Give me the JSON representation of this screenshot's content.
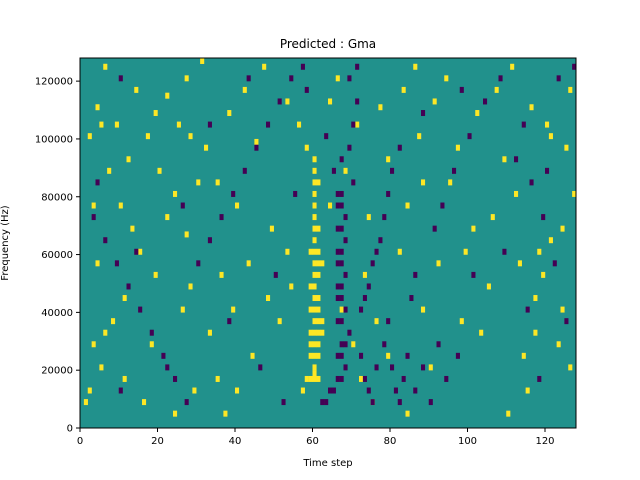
{
  "chart_data": {
    "type": "heatmap",
    "title": "Predicted : Gma",
    "xlabel": "Time step",
    "ylabel": "Frequency (Hz)",
    "xlim": [
      0,
      128
    ],
    "ylim": [
      0,
      128000
    ],
    "x_ticks": [
      0,
      20,
      40,
      60,
      80,
      100,
      120
    ],
    "y_ticks": [
      0,
      20000,
      40000,
      60000,
      80000,
      100000,
      120000
    ],
    "x_tick_labels": [
      "0",
      "20",
      "40",
      "60",
      "80",
      "100",
      "120"
    ],
    "y_tick_labels": [
      "0",
      "20000",
      "40000",
      "60000",
      "80000",
      "100000",
      "120000"
    ],
    "rows": 64,
    "row_height_hz": 2000,
    "value_levels": {
      "low": -1,
      "mid": 0,
      "high": 1
    },
    "colormap": {
      "low": "#440154",
      "mid": "#21918c",
      "high": "#fde725"
    },
    "colorbar": false,
    "grid": false,
    "high_cells": [
      [
        58,
        8
      ],
      [
        59,
        8
      ],
      [
        60,
        8
      ],
      [
        61,
        8
      ],
      [
        60,
        9
      ],
      [
        60,
        10
      ],
      [
        59,
        12
      ],
      [
        60,
        12
      ],
      [
        61,
        12
      ],
      [
        59,
        14
      ],
      [
        60,
        14
      ],
      [
        61,
        14
      ],
      [
        59,
        16
      ],
      [
        60,
        16
      ],
      [
        61,
        16
      ],
      [
        62,
        16
      ],
      [
        60,
        18
      ],
      [
        61,
        18
      ],
      [
        62,
        18
      ],
      [
        59,
        20
      ],
      [
        60,
        20
      ],
      [
        61,
        20
      ],
      [
        60,
        22
      ],
      [
        61,
        22
      ],
      [
        59,
        24
      ],
      [
        60,
        24
      ],
      [
        60,
        26
      ],
      [
        61,
        26
      ],
      [
        60,
        28
      ],
      [
        61,
        28
      ],
      [
        62,
        28
      ],
      [
        59,
        30
      ],
      [
        60,
        30
      ],
      [
        61,
        30
      ],
      [
        60,
        32
      ],
      [
        60,
        34
      ],
      [
        61,
        34
      ],
      [
        60,
        36
      ],
      [
        60,
        38
      ],
      [
        60,
        40
      ],
      [
        60,
        42
      ],
      [
        61,
        42
      ],
      [
        60,
        44
      ],
      [
        60,
        46
      ],
      [
        58,
        48
      ],
      [
        2,
        50
      ],
      [
        5,
        52
      ],
      [
        28,
        50
      ],
      [
        32,
        48
      ],
      [
        45,
        49
      ],
      [
        20,
        44
      ],
      [
        24,
        40
      ],
      [
        30,
        42
      ],
      [
        10,
        38
      ],
      [
        13,
        34
      ],
      [
        22,
        36
      ],
      [
        27,
        33
      ],
      [
        15,
        30
      ],
      [
        4,
        28
      ],
      [
        36,
        26
      ],
      [
        48,
        22
      ],
      [
        39,
        20
      ],
      [
        26,
        20
      ],
      [
        8,
        18
      ],
      [
        33,
        16
      ],
      [
        51,
        18
      ],
      [
        3,
        14
      ],
      [
        18,
        14
      ],
      [
        44,
        12
      ],
      [
        5,
        10
      ],
      [
        11,
        8
      ],
      [
        29,
        6
      ],
      [
        35,
        8
      ],
      [
        40,
        6
      ],
      [
        57,
        6
      ],
      [
        2,
        6
      ],
      [
        16,
        4
      ],
      [
        24,
        2
      ],
      [
        37,
        2
      ],
      [
        70,
        14
      ],
      [
        67,
        20
      ],
      [
        76,
        18
      ],
      [
        79,
        12
      ],
      [
        73,
        26
      ],
      [
        88,
        20
      ],
      [
        82,
        30
      ],
      [
        84,
        38
      ],
      [
        95,
        42
      ],
      [
        101,
        34
      ],
      [
        99,
        30
      ],
      [
        105,
        24
      ],
      [
        113,
        28
      ],
      [
        117,
        22
      ],
      [
        119,
        26
      ],
      [
        121,
        32
      ],
      [
        124,
        34
      ],
      [
        126,
        10
      ],
      [
        123,
        14
      ],
      [
        118,
        30
      ],
      [
        125,
        48
      ],
      [
        121,
        50
      ],
      [
        112,
        40
      ],
      [
        109,
        46
      ],
      [
        97,
        48
      ],
      [
        88,
        42
      ],
      [
        72,
        8
      ],
      [
        75,
        4
      ],
      [
        84,
        2
      ],
      [
        90,
        10
      ],
      [
        98,
        18
      ],
      [
        103,
        16
      ],
      [
        115,
        6
      ],
      [
        110,
        2
      ],
      [
        124,
        20
      ],
      [
        127,
        40
      ],
      [
        7,
        44
      ],
      [
        12,
        46
      ],
      [
        19,
        54
      ],
      [
        22,
        57
      ],
      [
        27,
        60
      ],
      [
        31,
        63
      ],
      [
        14,
        58
      ],
      [
        6,
        62
      ],
      [
        4,
        55
      ],
      [
        9,
        52
      ],
      [
        17,
        50
      ],
      [
        25,
        52
      ],
      [
        38,
        54
      ],
      [
        42,
        58
      ],
      [
        47,
        62
      ],
      [
        53,
        56
      ],
      [
        56,
        52
      ],
      [
        64,
        56
      ],
      [
        66,
        60
      ],
      [
        71,
        52
      ],
      [
        77,
        55
      ],
      [
        83,
        58
      ],
      [
        86,
        62
      ],
      [
        91,
        56
      ],
      [
        94,
        60
      ],
      [
        102,
        54
      ],
      [
        107,
        58
      ],
      [
        111,
        62
      ],
      [
        116,
        55
      ],
      [
        120,
        52
      ],
      [
        126,
        58
      ],
      [
        35,
        42
      ],
      [
        40,
        38
      ],
      [
        53,
        30
      ],
      [
        64,
        38
      ],
      [
        68,
        44
      ],
      [
        74,
        36
      ],
      [
        79,
        46
      ],
      [
        87,
        50
      ],
      [
        92,
        28
      ],
      [
        106,
        36
      ],
      [
        114,
        12
      ],
      [
        117,
        16
      ],
      [
        43,
        28
      ],
      [
        49,
        34
      ],
      [
        54,
        24
      ],
      [
        28,
        24
      ],
      [
        19,
        26
      ],
      [
        11,
        22
      ],
      [
        6,
        16
      ],
      [
        1,
        4
      ],
      [
        3,
        38
      ]
    ],
    "low_cells": [
      [
        62,
        4
      ],
      [
        63,
        4
      ],
      [
        64,
        6
      ],
      [
        65,
        6
      ],
      [
        66,
        8
      ],
      [
        67,
        8
      ],
      [
        68,
        10
      ],
      [
        66,
        12
      ],
      [
        67,
        12
      ],
      [
        67,
        14
      ],
      [
        68,
        14
      ],
      [
        69,
        16
      ],
      [
        66,
        18
      ],
      [
        67,
        18
      ],
      [
        68,
        20
      ],
      [
        66,
        22
      ],
      [
        67,
        22
      ],
      [
        66,
        24
      ],
      [
        67,
        24
      ],
      [
        68,
        26
      ],
      [
        66,
        28
      ],
      [
        67,
        28
      ],
      [
        66,
        30
      ],
      [
        67,
        30
      ],
      [
        68,
        32
      ],
      [
        66,
        34
      ],
      [
        67,
        34
      ],
      [
        68,
        36
      ],
      [
        66,
        38
      ],
      [
        67,
        38
      ],
      [
        66,
        40
      ],
      [
        67,
        40
      ],
      [
        65,
        44
      ],
      [
        67,
        46
      ],
      [
        69,
        48
      ],
      [
        70,
        52
      ],
      [
        71,
        56
      ],
      [
        69,
        60
      ],
      [
        71,
        62
      ],
      [
        72,
        12
      ],
      [
        73,
        8
      ],
      [
        74,
        6
      ],
      [
        75,
        4
      ],
      [
        76,
        10
      ],
      [
        78,
        14
      ],
      [
        79,
        18
      ],
      [
        80,
        10
      ],
      [
        81,
        6
      ],
      [
        82,
        4
      ],
      [
        83,
        8
      ],
      [
        84,
        12
      ],
      [
        86,
        6
      ],
      [
        88,
        10
      ],
      [
        90,
        4
      ],
      [
        92,
        14
      ],
      [
        94,
        8
      ],
      [
        97,
        12
      ],
      [
        72,
        20
      ],
      [
        73,
        22
      ],
      [
        74,
        24
      ],
      [
        75,
        28
      ],
      [
        76,
        30
      ],
      [
        77,
        32
      ],
      [
        78,
        36
      ],
      [
        79,
        40
      ],
      [
        80,
        44
      ],
      [
        82,
        48
      ],
      [
        85,
        22
      ],
      [
        86,
        26
      ],
      [
        91,
        34
      ],
      [
        93,
        38
      ],
      [
        96,
        44
      ],
      [
        100,
        50
      ],
      [
        104,
        56
      ],
      [
        108,
        60
      ],
      [
        112,
        46
      ],
      [
        116,
        42
      ],
      [
        119,
        36
      ],
      [
        122,
        28
      ],
      [
        125,
        18
      ],
      [
        10,
        60
      ],
      [
        3,
        36
      ],
      [
        6,
        32
      ],
      [
        9,
        28
      ],
      [
        12,
        24
      ],
      [
        15,
        20
      ],
      [
        18,
        16
      ],
      [
        21,
        12
      ],
      [
        24,
        8
      ],
      [
        27,
        4
      ],
      [
        30,
        28
      ],
      [
        33,
        32
      ],
      [
        36,
        36
      ],
      [
        39,
        40
      ],
      [
        42,
        44
      ],
      [
        45,
        48
      ],
      [
        48,
        52
      ],
      [
        51,
        56
      ],
      [
        54,
        60
      ],
      [
        57,
        62
      ],
      [
        4,
        42
      ],
      [
        14,
        30
      ],
      [
        26,
        38
      ],
      [
        38,
        18
      ],
      [
        50,
        26
      ],
      [
        55,
        40
      ],
      [
        22,
        10
      ],
      [
        10,
        6
      ],
      [
        33,
        52
      ],
      [
        43,
        60
      ],
      [
        46,
        10
      ],
      [
        52,
        4
      ],
      [
        58,
        58
      ],
      [
        63,
        50
      ],
      [
        70,
        42
      ],
      [
        88,
        54
      ],
      [
        98,
        58
      ],
      [
        114,
        52
      ],
      [
        120,
        44
      ],
      [
        123,
        60
      ],
      [
        127,
        62
      ],
      [
        101,
        26
      ],
      [
        109,
        30
      ],
      [
        115,
        20
      ],
      [
        118,
        8
      ]
    ]
  }
}
